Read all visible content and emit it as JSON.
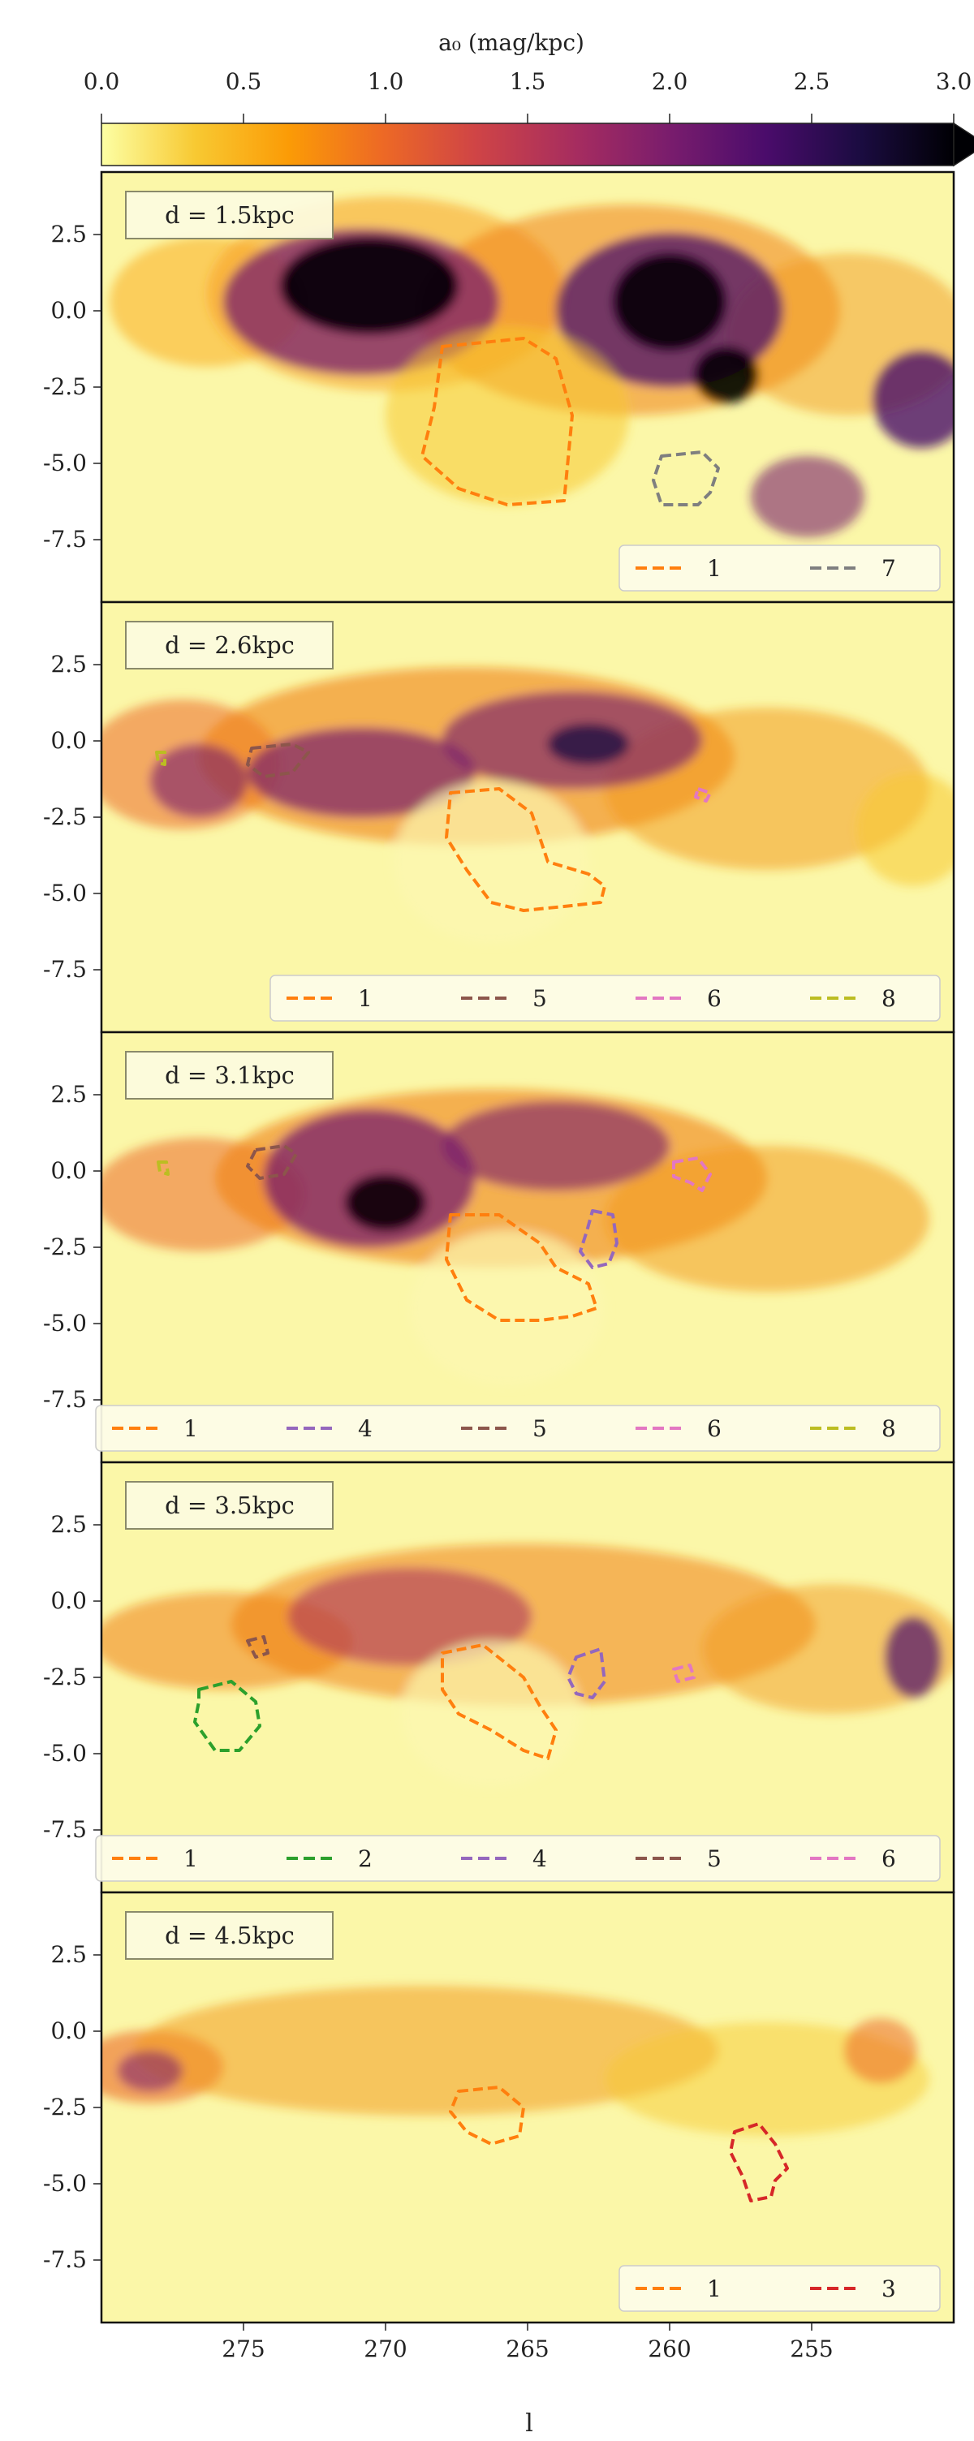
{
  "colorbar": {
    "label": "a₀ (mag/kpc)",
    "ticks": [
      "0.0",
      "0.5",
      "1.0",
      "1.5",
      "2.0",
      "2.5",
      "3.0"
    ],
    "range": [
      0,
      3.0
    ],
    "extend": "max",
    "colormap": "inferno_r",
    "colors": [
      "#fcffa4",
      "#f8c932",
      "#fb9b06",
      "#ed6925",
      "#cf4446",
      "#a52c60",
      "#781c6d",
      "#4a0c6b",
      "#1b0c41",
      "#000004"
    ]
  },
  "xaxis": {
    "label": "l",
    "ticks": [
      "275",
      "270",
      "265",
      "260",
      "255"
    ],
    "range": [
      280,
      250
    ],
    "inverted": true
  },
  "yaxis": {
    "ticks": [
      "2.5",
      "0.0",
      "-2.5",
      "-5.0",
      "-7.5"
    ]
  },
  "chart_data": {
    "type": "heatmap",
    "description_of_layout": "5 vertically stacked panels sharing x axis",
    "cloud_colors": {
      "1": "#ff7f0e",
      "2": "#2ca02c",
      "3": "#d62728",
      "4": "#9467bd",
      "5": "#8c564b",
      "6": "#e377c2",
      "7": "#7f7f7f",
      "8": "#bcbd22"
    },
    "panels": [
      {
        "label": "d = 1.5kpc",
        "legend": [
          "1",
          "7"
        ]
      },
      {
        "label": "d = 2.6kpc",
        "legend": [
          "1",
          "5",
          "6",
          "8"
        ]
      },
      {
        "label": "d = 3.1kpc",
        "legend": [
          "1",
          "4",
          "5",
          "6",
          "8"
        ]
      },
      {
        "label": "d = 3.5kpc",
        "legend": [
          "1",
          "2",
          "4",
          "5",
          "6"
        ]
      },
      {
        "label": "d = 4.5kpc",
        "legend": [
          "1",
          "3"
        ]
      }
    ]
  }
}
